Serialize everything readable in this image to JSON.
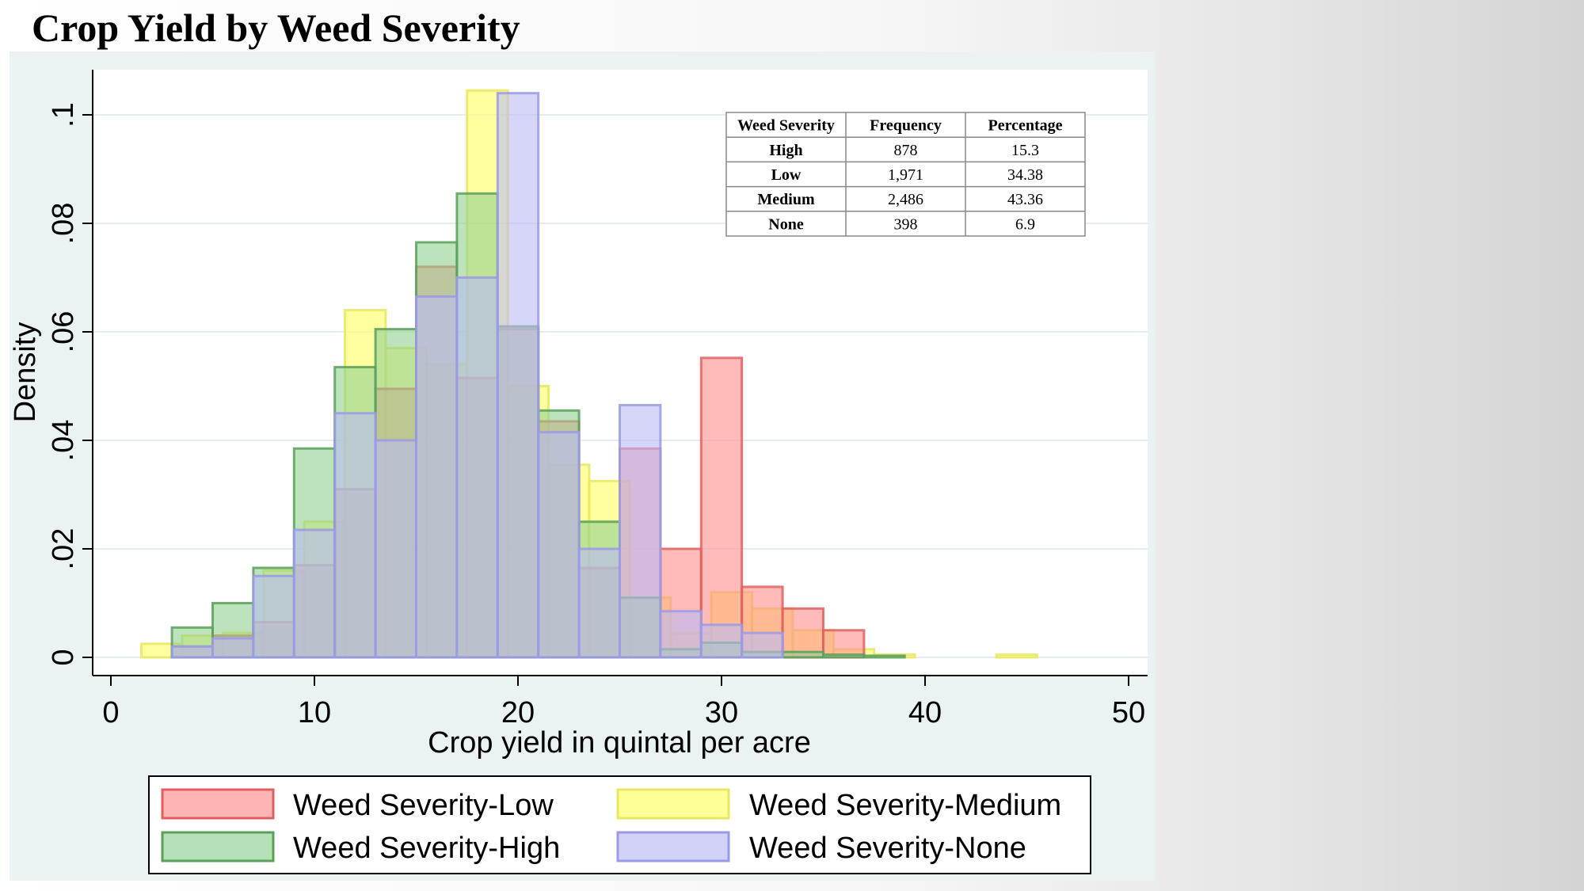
{
  "title": "Crop Yield by Weed Severity",
  "chart_data": {
    "type": "histogram",
    "xlabel": "Crop yield in quintal per acre",
    "ylabel": "Density",
    "xlim": [
      0,
      50
    ],
    "ylim": [
      0,
      0.1
    ],
    "x_ticks": [
      {
        "value": 0,
        "label": "0"
      },
      {
        "value": 10,
        "label": "10"
      },
      {
        "value": 20,
        "label": "20"
      },
      {
        "value": 30,
        "label": "30"
      },
      {
        "value": 40,
        "label": "40"
      },
      {
        "value": 50,
        "label": "50"
      }
    ],
    "y_ticks": [
      {
        "value": 0,
        "label": "0"
      },
      {
        "value": 0.02,
        "label": ".02"
      },
      {
        "value": 0.04,
        "label": ".04"
      },
      {
        "value": 0.06,
        "label": ".06"
      },
      {
        "value": 0.08,
        "label": ".08"
      },
      {
        "value": 0.1,
        "label": ".1"
      }
    ],
    "grid": true,
    "legend_position": "bottom",
    "series": [
      {
        "name": "Weed Severity-Medium",
        "fill": "#ffff60",
        "stroke": "#e8e860",
        "bins": [
          {
            "x0": 1.5,
            "x1": 3.5,
            "y": 0.0025
          },
          {
            "x0": 3.5,
            "x1": 5.5,
            "y": 0.004
          },
          {
            "x0": 5.5,
            "x1": 7.5,
            "y": 0.0045
          },
          {
            "x0": 7.5,
            "x1": 9.5,
            "y": 0.016
          },
          {
            "x0": 9.5,
            "x1": 11.5,
            "y": 0.025
          },
          {
            "x0": 11.5,
            "x1": 13.5,
            "y": 0.064
          },
          {
            "x0": 13.5,
            "x1": 15.5,
            "y": 0.057
          },
          {
            "x0": 15.5,
            "x1": 17.5,
            "y": 0.054
          },
          {
            "x0": 17.5,
            "x1": 19.5,
            "y": 0.1045
          },
          {
            "x0": 19.5,
            "x1": 21.5,
            "y": 0.05
          },
          {
            "x0": 21.5,
            "x1": 23.5,
            "y": 0.0355
          },
          {
            "x0": 23.5,
            "x1": 25.5,
            "y": 0.0325
          },
          {
            "x0": 25.5,
            "x1": 27.5,
            "y": 0.011
          },
          {
            "x0": 27.5,
            "x1": 29.5,
            "y": 0.0045
          },
          {
            "x0": 29.5,
            "x1": 31.5,
            "y": 0.012
          },
          {
            "x0": 31.5,
            "x1": 33.5,
            "y": 0.009
          },
          {
            "x0": 33.5,
            "x1": 35.5,
            "y": 0.005
          },
          {
            "x0": 35.5,
            "x1": 37.5,
            "y": 0.0015
          },
          {
            "x0": 37.5,
            "x1": 39.5,
            "y": 0.0005
          },
          {
            "x0": 43.5,
            "x1": 45.5,
            "y": 0.0005
          }
        ]
      },
      {
        "name": "Weed Severity-Low",
        "fill": "#ff8c8c",
        "stroke": "#e06060",
        "bins": [
          {
            "x0": 3,
            "x1": 5,
            "y": 0.002
          },
          {
            "x0": 5,
            "x1": 7,
            "y": 0.004
          },
          {
            "x0": 7,
            "x1": 9,
            "y": 0.0065
          },
          {
            "x0": 9,
            "x1": 11,
            "y": 0.017
          },
          {
            "x0": 11,
            "x1": 13,
            "y": 0.031
          },
          {
            "x0": 13,
            "x1": 15,
            "y": 0.0495
          },
          {
            "x0": 15,
            "x1": 17,
            "y": 0.072
          },
          {
            "x0": 17,
            "x1": 19,
            "y": 0.0515
          },
          {
            "x0": 19,
            "x1": 21,
            "y": 0.0605
          },
          {
            "x0": 21,
            "x1": 23,
            "y": 0.0435
          },
          {
            "x0": 23,
            "x1": 25,
            "y": 0.0165
          },
          {
            "x0": 25,
            "x1": 27,
            "y": 0.0385
          },
          {
            "x0": 27,
            "x1": 29,
            "y": 0.02
          },
          {
            "x0": 29,
            "x1": 31,
            "y": 0.0552
          },
          {
            "x0": 31,
            "x1": 33,
            "y": 0.013
          },
          {
            "x0": 33,
            "x1": 35,
            "y": 0.009
          },
          {
            "x0": 35,
            "x1": 37,
            "y": 0.005
          }
        ]
      },
      {
        "name": "Weed Severity-High",
        "fill": "#8fd08f",
        "stroke": "#5aa05a",
        "bins": [
          {
            "x0": 3,
            "x1": 5,
            "y": 0.0055
          },
          {
            "x0": 5,
            "x1": 7,
            "y": 0.01
          },
          {
            "x0": 7,
            "x1": 9,
            "y": 0.0165
          },
          {
            "x0": 9,
            "x1": 11,
            "y": 0.0385
          },
          {
            "x0": 11,
            "x1": 13,
            "y": 0.0535
          },
          {
            "x0": 13,
            "x1": 15,
            "y": 0.0605
          },
          {
            "x0": 15,
            "x1": 17,
            "y": 0.0765
          },
          {
            "x0": 17,
            "x1": 19,
            "y": 0.0855
          },
          {
            "x0": 19,
            "x1": 21,
            "y": 0.061
          },
          {
            "x0": 21,
            "x1": 23,
            "y": 0.0455
          },
          {
            "x0": 23,
            "x1": 25,
            "y": 0.025
          },
          {
            "x0": 25,
            "x1": 27,
            "y": 0.011
          },
          {
            "x0": 27,
            "x1": 29,
            "y": 0.0015
          },
          {
            "x0": 29,
            "x1": 31,
            "y": 0.0027
          },
          {
            "x0": 31,
            "x1": 33,
            "y": 0.001
          },
          {
            "x0": 33,
            "x1": 35,
            "y": 0.001
          },
          {
            "x0": 35,
            "x1": 37,
            "y": 0.0005
          },
          {
            "x0": 37,
            "x1": 39,
            "y": 0.0003
          }
        ]
      },
      {
        "name": "Weed Severity-None",
        "fill": "#babaf5",
        "stroke": "#9a9ae6",
        "bins": [
          {
            "x0": 3,
            "x1": 5,
            "y": 0.002
          },
          {
            "x0": 5,
            "x1": 7,
            "y": 0.0035
          },
          {
            "x0": 7,
            "x1": 9,
            "y": 0.015
          },
          {
            "x0": 9,
            "x1": 11,
            "y": 0.0235
          },
          {
            "x0": 11,
            "x1": 13,
            "y": 0.045
          },
          {
            "x0": 13,
            "x1": 15,
            "y": 0.04
          },
          {
            "x0": 15,
            "x1": 17,
            "y": 0.0665
          },
          {
            "x0": 17,
            "x1": 19,
            "y": 0.07
          },
          {
            "x0": 19,
            "x1": 21,
            "y": 0.104
          },
          {
            "x0": 21,
            "x1": 23,
            "y": 0.0415
          },
          {
            "x0": 23,
            "x1": 25,
            "y": 0.02
          },
          {
            "x0": 25,
            "x1": 27,
            "y": 0.0465
          },
          {
            "x0": 27,
            "x1": 29,
            "y": 0.0085
          },
          {
            "x0": 29,
            "x1": 31,
            "y": 0.006
          },
          {
            "x0": 31,
            "x1": 33,
            "y": 0.0045
          }
        ]
      }
    ],
    "legend": [
      {
        "label": "Weed Severity-Low",
        "fill": "#ff8c8c",
        "stroke": "#e06060"
      },
      {
        "label": "Weed Severity-Medium",
        "fill": "#ffff60",
        "stroke": "#e8e860"
      },
      {
        "label": "Weed Severity-High",
        "fill": "#8fd08f",
        "stroke": "#5aa05a"
      },
      {
        "label": "Weed Severity-None",
        "fill": "#babaf5",
        "stroke": "#9a9ae6"
      }
    ],
    "table": {
      "headers": [
        "Weed Severity",
        "Frequency",
        "Percentage"
      ],
      "rows": [
        [
          "High",
          "878",
          "15.3"
        ],
        [
          "Low",
          "1,971",
          "34.38"
        ],
        [
          "Medium",
          "2,486",
          "43.36"
        ],
        [
          "None",
          "398",
          "6.9"
        ]
      ]
    }
  }
}
